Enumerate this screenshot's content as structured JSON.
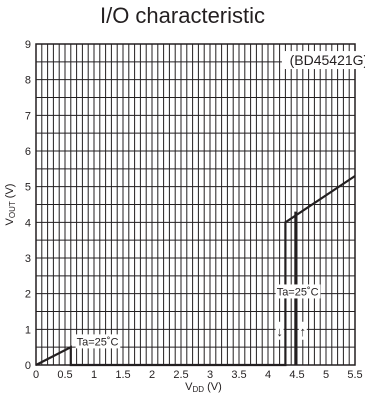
{
  "chart_data": {
    "type": "line",
    "title": "I/O characteristic",
    "part_label": "(BD45421G)",
    "xlabel": "VDD (V)",
    "ylabel": "VOUT (V)",
    "xlabel_parts": {
      "main": "V",
      "sub": "DD",
      "unit": " (V)"
    },
    "ylabel_parts": {
      "main": "V",
      "sub": "OUT",
      "unit": " (V)"
    },
    "xlim": [
      0,
      5.5
    ],
    "ylim": [
      0,
      9
    ],
    "x_ticks": [
      0,
      0.5,
      1,
      1.5,
      2,
      2.5,
      3,
      3.5,
      4,
      4.5,
      5,
      5.5
    ],
    "x_tick_labels": [
      "0",
      "0.5",
      "1",
      "1.5",
      "2",
      "2.5",
      "3",
      "3.5",
      "4",
      "4.5",
      "5",
      "5.5"
    ],
    "y_ticks": [
      0,
      1,
      2,
      3,
      4,
      5,
      6,
      7,
      8,
      9
    ],
    "y_tick_labels": [
      "0",
      "1",
      "2",
      "3",
      "4",
      "5",
      "6",
      "7",
      "8",
      "9"
    ],
    "grid": true,
    "minor_grid_step_x": 0.1,
    "minor_grid_step_y": 0.5,
    "series": [
      {
        "x": [
          0,
          0.6,
          0.6,
          4.3,
          4.3,
          5.5
        ],
        "y": [
          0,
          0.5,
          0,
          0,
          4.0,
          5.3
        ]
      },
      {
        "x": [
          4.48,
          4.48
        ],
        "y": [
          0,
          4.3
        ]
      }
    ],
    "annotations": [
      {
        "text": "Ta=25˚C",
        "x": 0.7,
        "y": 0.55
      },
      {
        "text": "Ta=25˚C",
        "x": 4.15,
        "y": 1.95
      },
      {
        "text": "↓",
        "x": 4.2,
        "y": 0.82
      },
      {
        "text": "↑",
        "x": 4.6,
        "y": 0.82
      }
    ],
    "colors": {
      "line": "#231f20",
      "grid": "#231f20",
      "background": "#ffffff"
    }
  }
}
